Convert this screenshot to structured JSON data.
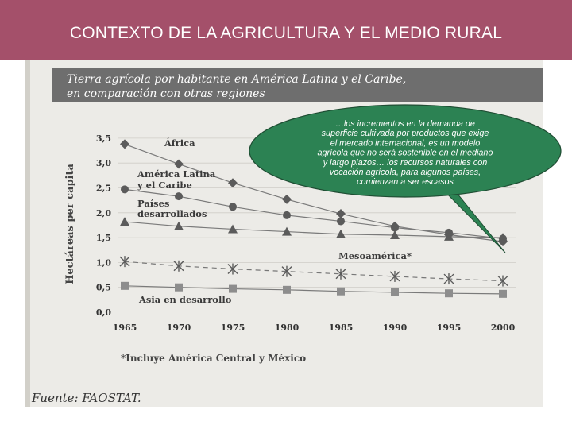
{
  "header": {
    "title": "CONTEXTO DE LA AGRICULTURA Y EL MEDIO RURAL"
  },
  "callout": {
    "text_lines": [
      "…los incrementos en la demanda de",
      "superficie cultivada por productos que exige",
      "el mercado internacional, es un modelo",
      "agrícola que no será sostenible en el mediano",
      "y largo plazos… los recursos naturales con",
      "vocación agrícola,  para algunos países,",
      "comienzan a ser escasos"
    ],
    "fill": "#2c8253"
  },
  "colors": {
    "header_bg": "#a4506a",
    "banner_bg": "#6e6e6e",
    "series_color": "#5b5b5b"
  },
  "chart_data": {
    "type": "line",
    "title_lines": [
      "Tierra agrícola por habitante en América Latina y el Caribe,",
      "en comparación con otras regiones"
    ],
    "ylabel": "Hectáreas per capita",
    "xlabel": "",
    "categories": [
      "1965",
      "1970",
      "1975",
      "1980",
      "1985",
      "1990",
      "1995",
      "2000"
    ],
    "ylim": [
      0,
      3.5
    ],
    "yticks": [
      "0,0",
      "0,5",
      "1,0",
      "1,5",
      "2,0",
      "2,5",
      "3,0",
      "3,5"
    ],
    "grid": true,
    "series": [
      {
        "name": "África",
        "marker": "diamond",
        "values": [
          3.38,
          2.98,
          2.6,
          2.27,
          1.98,
          1.73,
          1.56,
          1.42
        ]
      },
      {
        "name": "América Latina y el Caribe",
        "marker": "circle",
        "values": [
          2.47,
          2.33,
          2.12,
          1.95,
          1.83,
          1.7,
          1.6,
          1.48
        ]
      },
      {
        "name": "Países desarrollados",
        "marker": "triangle",
        "values": [
          1.82,
          1.73,
          1.67,
          1.62,
          1.57,
          1.55,
          1.52,
          1.5
        ]
      },
      {
        "name": "Mesoamérica*",
        "marker": "asterisk",
        "values": [
          1.02,
          0.93,
          0.87,
          0.82,
          0.77,
          0.72,
          0.67,
          0.63
        ]
      },
      {
        "name": "Asia en desarrollo",
        "marker": "square",
        "values": [
          0.53,
          0.5,
          0.47,
          0.45,
          0.42,
          0.4,
          0.38,
          0.37
        ]
      }
    ],
    "series_labels": [
      "África",
      "América Latina",
      "y el Caribe",
      "Países",
      "desarrollados",
      "Mesoamérica*",
      "Asia en desarrollo"
    ],
    "footnote": "*Incluye América Central y México",
    "source": "Fuente: FAOSTAT."
  }
}
